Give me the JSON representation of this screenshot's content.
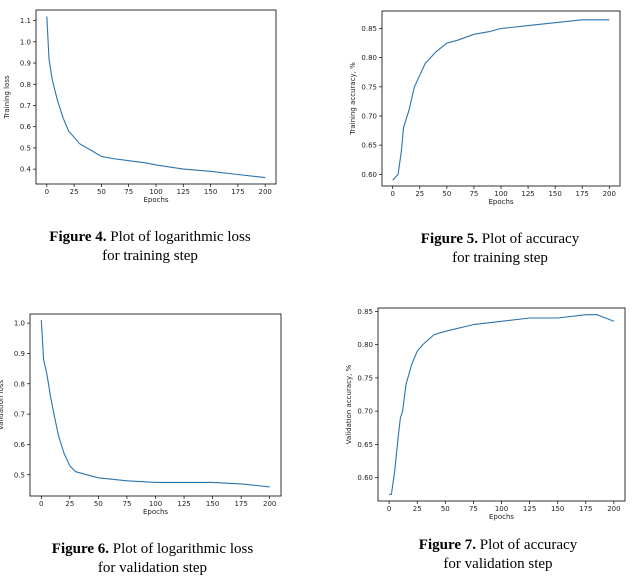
{
  "colors": {
    "line": "#2a74b0",
    "axis": "#000000"
  },
  "chart_data": [
    {
      "type": "line",
      "xlabel": "Epochs",
      "ylabel": "Training loss",
      "xlim": [
        0,
        200
      ],
      "ylim": [
        0.33,
        1.15
      ],
      "xticks": [
        "0",
        "25",
        "50",
        "75",
        "100",
        "125",
        "150",
        "175",
        "200"
      ],
      "yticks": [
        "0.4",
        "0.5",
        "0.6",
        "0.7",
        "0.8",
        "0.9",
        "1.0",
        "1.1"
      ],
      "x": [
        0,
        2,
        5,
        8,
        10,
        15,
        20,
        25,
        30,
        40,
        50,
        60,
        75,
        90,
        100,
        125,
        150,
        175,
        200
      ],
      "series": [
        {
          "values": [
            1.12,
            0.92,
            0.82,
            0.76,
            0.72,
            0.64,
            0.58,
            0.55,
            0.52,
            0.49,
            0.46,
            0.45,
            0.44,
            0.43,
            0.42,
            0.4,
            0.39,
            0.375,
            0.36
          ]
        }
      ],
      "caption": {
        "figure": "Figure 4.",
        "line1": "Plot of logarithmic loss",
        "line2": "for training step"
      }
    },
    {
      "type": "line",
      "xlabel": "Epochs",
      "ylabel": "Training accuracy, %",
      "xlim": [
        0,
        200
      ],
      "ylim": [
        0.58,
        0.88
      ],
      "xticks": [
        "0",
        "25",
        "50",
        "75",
        "100",
        "125",
        "150",
        "175",
        "200"
      ],
      "yticks": [
        "0.60",
        "0.65",
        "0.70",
        "0.75",
        "0.80",
        "0.85"
      ],
      "x": [
        0,
        5,
        8,
        10,
        15,
        20,
        25,
        30,
        40,
        50,
        60,
        75,
        90,
        100,
        125,
        150,
        175,
        200
      ],
      "series": [
        {
          "values": [
            0.59,
            0.6,
            0.64,
            0.68,
            0.71,
            0.75,
            0.77,
            0.79,
            0.81,
            0.825,
            0.83,
            0.84,
            0.845,
            0.85,
            0.855,
            0.86,
            0.865,
            0.865
          ]
        }
      ],
      "caption": {
        "figure": "Figure 5.",
        "line1": "Plot of accuracy",
        "line2": "for training step"
      }
    },
    {
      "type": "line",
      "xlabel": "Epochs",
      "ylabel": "Validation loss",
      "xlim": [
        0,
        200
      ],
      "ylim": [
        0.43,
        1.03
      ],
      "xticks": [
        "0",
        "25",
        "50",
        "75",
        "100",
        "125",
        "150",
        "175",
        "200"
      ],
      "yticks": [
        "0.5",
        "0.6",
        "0.7",
        "0.8",
        "0.9",
        "1.0"
      ],
      "x": [
        0,
        2,
        5,
        8,
        10,
        15,
        20,
        25,
        30,
        40,
        50,
        75,
        100,
        125,
        150,
        175,
        200
      ],
      "series": [
        {
          "values": [
            1.01,
            0.88,
            0.83,
            0.76,
            0.72,
            0.63,
            0.57,
            0.53,
            0.51,
            0.5,
            0.49,
            0.48,
            0.475,
            0.475,
            0.475,
            0.47,
            0.46
          ]
        }
      ],
      "caption": {
        "figure": "Figure 6.",
        "line1": "Plot of logarithmic loss",
        "line2": "for validation step"
      }
    },
    {
      "type": "line",
      "xlabel": "Epochs",
      "ylabel": "Validation accuracy, %",
      "xlim": [
        0,
        200
      ],
      "ylim": [
        0.565,
        0.855
      ],
      "xticks": [
        "0",
        "25",
        "50",
        "75",
        "100",
        "125",
        "150",
        "175",
        "200"
      ],
      "yticks": [
        "0.60",
        "0.65",
        "0.70",
        "0.75",
        "0.80",
        "0.85"
      ],
      "x": [
        0,
        2,
        5,
        8,
        10,
        12,
        15,
        20,
        25,
        30,
        40,
        50,
        75,
        100,
        125,
        150,
        175,
        185,
        200
      ],
      "series": [
        {
          "values": [
            0.575,
            0.575,
            0.61,
            0.66,
            0.69,
            0.7,
            0.74,
            0.77,
            0.79,
            0.8,
            0.815,
            0.82,
            0.83,
            0.835,
            0.84,
            0.84,
            0.845,
            0.845,
            0.835
          ]
        }
      ],
      "caption": {
        "figure": "Figure 7.",
        "line1": "Plot of accuracy",
        "line2": "for validation step"
      }
    }
  ]
}
